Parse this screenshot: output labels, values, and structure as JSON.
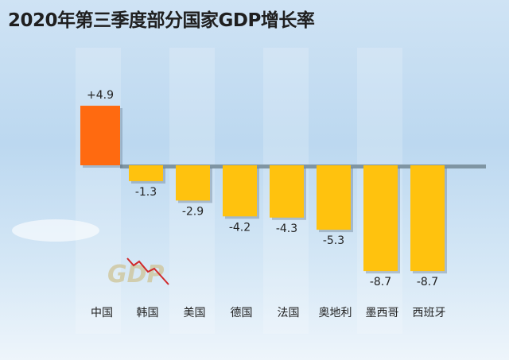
{
  "title": "2020年第三季度部分国家GDP增长率",
  "logo_text": "GDP",
  "chart_data": {
    "type": "bar",
    "title": "2020年第三季度部分国家GDP增长率",
    "categories": [
      "中国",
      "韩国",
      "美国",
      "德国",
      "法国",
      "奥地利",
      "墨西哥",
      "西班牙"
    ],
    "values": [
      4.9,
      -1.3,
      -2.9,
      -4.2,
      -4.3,
      -5.3,
      -8.7,
      -8.7
    ],
    "data_labels": [
      "+4.9",
      "-1.3",
      "-2.9",
      "-4.2",
      "-4.3",
      "-5.3",
      "-8.7",
      "-8.7"
    ],
    "colors": {
      "positive": "#ff6a10",
      "negative": "#ffc20e",
      "baseline": "#7f95a3"
    },
    "grid": false,
    "legend": "none"
  }
}
